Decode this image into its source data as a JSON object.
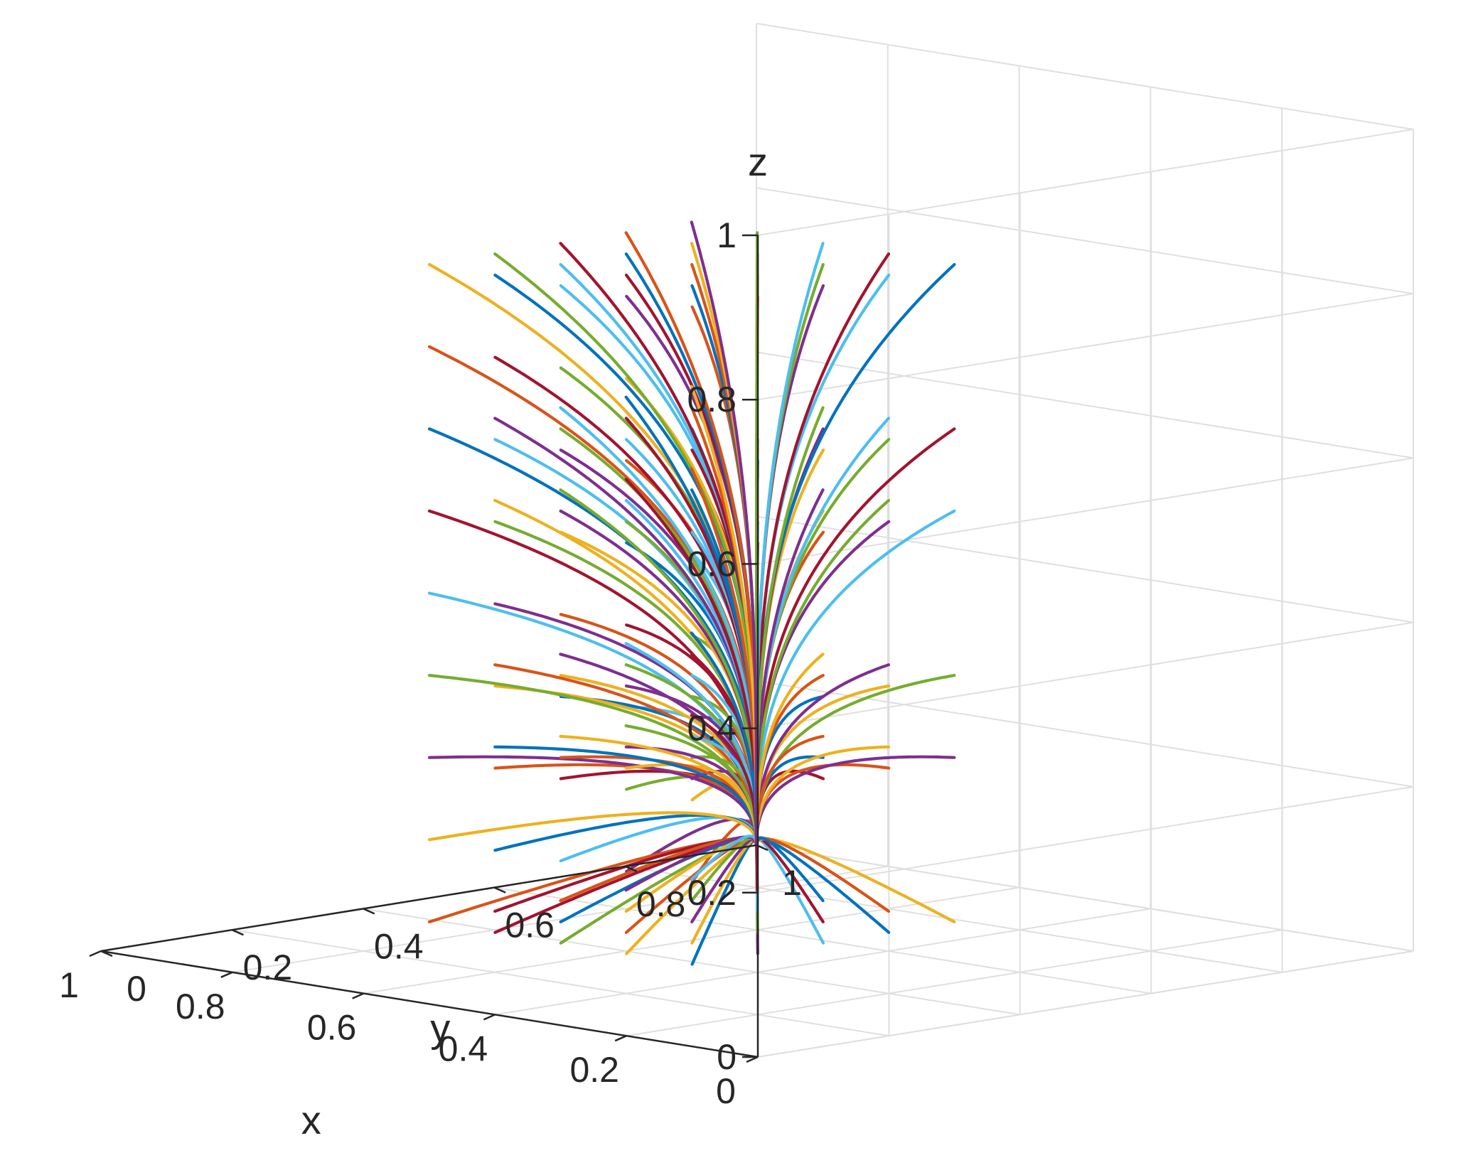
{
  "chart_data": {
    "type": "line",
    "plot_kind": "3d-trajectories",
    "xlabel": "x",
    "ylabel": "y",
    "zlabel": "z",
    "xlim": [
      0,
      1
    ],
    "ylim": [
      0,
      1
    ],
    "zlim": [
      0,
      1
    ],
    "x_ticks": [
      "0",
      "0.2",
      "0.4",
      "0.6",
      "0.8",
      "1"
    ],
    "y_ticks": [
      "0",
      "0.2",
      "0.4",
      "0.6",
      "0.8",
      "1"
    ],
    "z_ticks": [
      "0",
      "0.2",
      "0.4",
      "0.6",
      "0.8",
      "1"
    ],
    "grid": true,
    "series_colors": [
      "#0072BD",
      "#D95319",
      "#EDB120",
      "#7E2F8E",
      "#77AC30",
      "#4DBEEE",
      "#A2142F"
    ],
    "trajectory_start_points": {
      "x0_values": [
        0.1,
        0.2,
        0.3,
        0.4,
        0.5
      ],
      "y0_values": [
        0,
        0.1,
        0.2,
        0.3,
        0.4
      ],
      "z0_values": [
        0.1,
        0.2,
        0.3,
        0.4,
        0.5,
        0.6,
        0.7,
        0.8,
        0.9
      ]
    },
    "convergence_point": [
      1,
      1,
      0
    ]
  }
}
